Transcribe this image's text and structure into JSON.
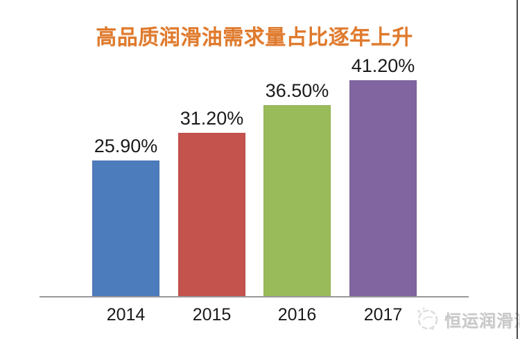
{
  "title": {
    "text": "高品质润滑油需求量占比逐年上升",
    "color": "#DF7A2D"
  },
  "chart_data": {
    "type": "bar",
    "title": "高品质润滑油需求量占比逐年上升",
    "categories": [
      "2014",
      "2015",
      "2016",
      "2017"
    ],
    "values": [
      25.9,
      31.2,
      36.5,
      41.2
    ],
    "value_labels": [
      "25.90%",
      "31.20%",
      "36.50%",
      "41.20%"
    ],
    "bar_colors": [
      "#4D7CBC",
      "#C4524D",
      "#9ABB59",
      "#8065A0"
    ],
    "xlabel": "",
    "ylabel": "",
    "ylim": [
      0,
      45
    ],
    "grid": false,
    "legend": null,
    "axis_line_color": "#98989b",
    "label_color": "#1a1a1a"
  },
  "watermark": {
    "icon": "brand-sun-logo-icon",
    "text": "恒运润滑油",
    "color": "#c8c8c8"
  }
}
